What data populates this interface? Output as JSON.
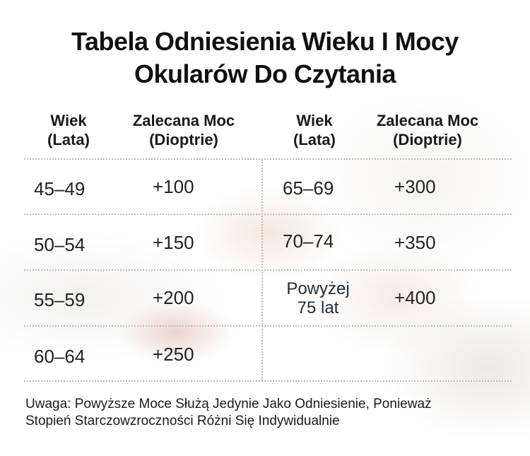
{
  "title": {
    "line1": "Tabela Odniesienia Wieku I Mocy",
    "line2": "Okularów Do Czytania"
  },
  "headers": {
    "left_age": [
      "Wiek",
      "(Lata)"
    ],
    "left_power": [
      "Zalecana Moc",
      "(Dioptrie)"
    ],
    "right_age": [
      "Wiek",
      "(Lata)"
    ],
    "right_power": [
      "Zalecana Moc",
      "(Dioptrie)"
    ]
  },
  "table": {
    "left_rows": [
      {
        "age": "45–49",
        "power": "+100"
      },
      {
        "age": "50–54",
        "power": "+150"
      },
      {
        "age": "55–59",
        "power": "+200"
      },
      {
        "age": "60–64",
        "power": "+250"
      }
    ],
    "right_rows": [
      {
        "age": "65–69",
        "power": "+300"
      },
      {
        "age": "70–74",
        "power": "+350"
      },
      {
        "age_lines": [
          "Powyżej",
          "75 lat"
        ],
        "power": "+400"
      }
    ]
  },
  "note": {
    "line1": "Uwaga: Powyższe Moce Służą Jedynie Jako Odniesienie, Ponieważ",
    "line2": "Stopień Starczowzroczności Różni Się Indywidualnie"
  }
}
